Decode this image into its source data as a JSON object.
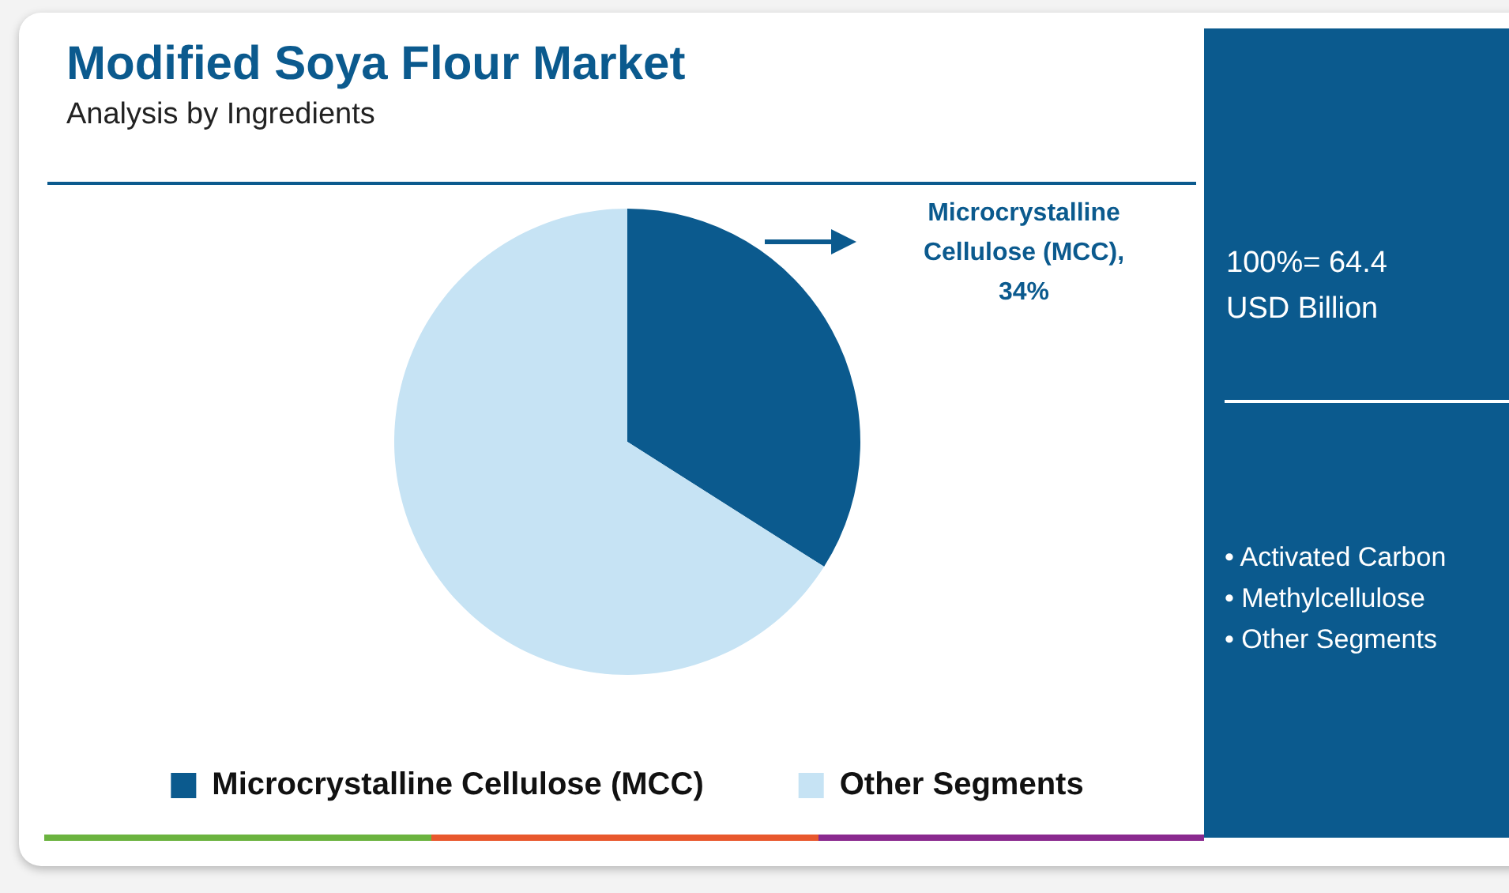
{
  "chart_data": {
    "type": "pie",
    "title": "Modified Soya Flour Market",
    "subtitle": "Analysis by Ingredients",
    "categories": [
      "Microcrystalline Cellulose (MCC)",
      "Other Segments"
    ],
    "values": [
      34,
      66
    ],
    "value_labels": [
      "Microcrystalline Cellulose (MCC), 34%",
      null
    ],
    "colors": [
      "#0b5a8e",
      "#c6e3f4"
    ],
    "legend": "bottom",
    "annotations": [
      "100%= 64.4 USD Billion",
      "• Activated Carbon",
      "• Methylcellulose",
      "• Other Segments"
    ]
  }
}
